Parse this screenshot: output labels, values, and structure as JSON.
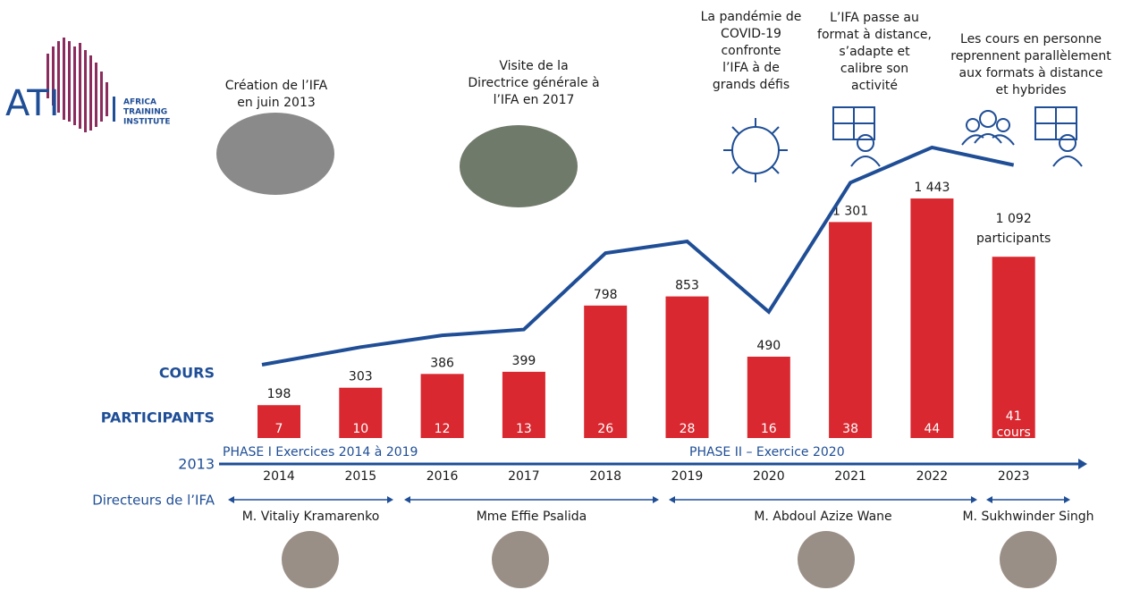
{
  "chart_data": {
    "type": "bar",
    "categories": [
      "2014",
      "2015",
      "2016",
      "2017",
      "2018",
      "2019",
      "2020",
      "2021",
      "2022",
      "2023"
    ],
    "series": [
      {
        "name": "PARTICIPANTS",
        "color": "#d9282f",
        "values": [
          198,
          303,
          386,
          399,
          798,
          853,
          490,
          1301,
          1443,
          1092
        ],
        "value_labels": [
          "198",
          "303",
          "386",
          "399",
          "798",
          "853",
          "490",
          "1 301",
          "1 443",
          "1 092"
        ],
        "unit_label": "participants"
      },
      {
        "name": "COURS",
        "color": "#1f4e96",
        "values": [
          7,
          10,
          12,
          13,
          26,
          28,
          16,
          38,
          44,
          41
        ],
        "unit_label": "cours"
      }
    ],
    "start_year": "2013",
    "phases": [
      "PHASE I Exercices 2014 à 2019",
      "PHASE II – Exercice 2020"
    ],
    "directors_label": "Directeurs de l’IFA",
    "directors": [
      "M. Vitaliy Kramarenko",
      "Mme Effie Psalida",
      "M. Abdoul Azize Wane",
      "M. Sukhwinder Singh"
    ],
    "annotations": [
      [
        "Création de l’IFA",
        "en juin 2013"
      ],
      [
        "Visite de la",
        "Directrice générale à",
        "l’IFA en 2017"
      ],
      [
        "La pandémie de",
        "COVID-19",
        "confronte",
        "l’IFA à de",
        "grands défis"
      ],
      [
        "L’IFA passe au",
        "format à distance,",
        "s’adapte et",
        "calibre son",
        "activité"
      ],
      [
        "Les cours en personne",
        "reprennent parallèlement",
        "aux formats à distance",
        "et hybrides"
      ]
    ],
    "logo": {
      "short": "ATI",
      "lines": [
        "AFRICA",
        "TRAINING",
        "INSTITUTE"
      ]
    }
  }
}
